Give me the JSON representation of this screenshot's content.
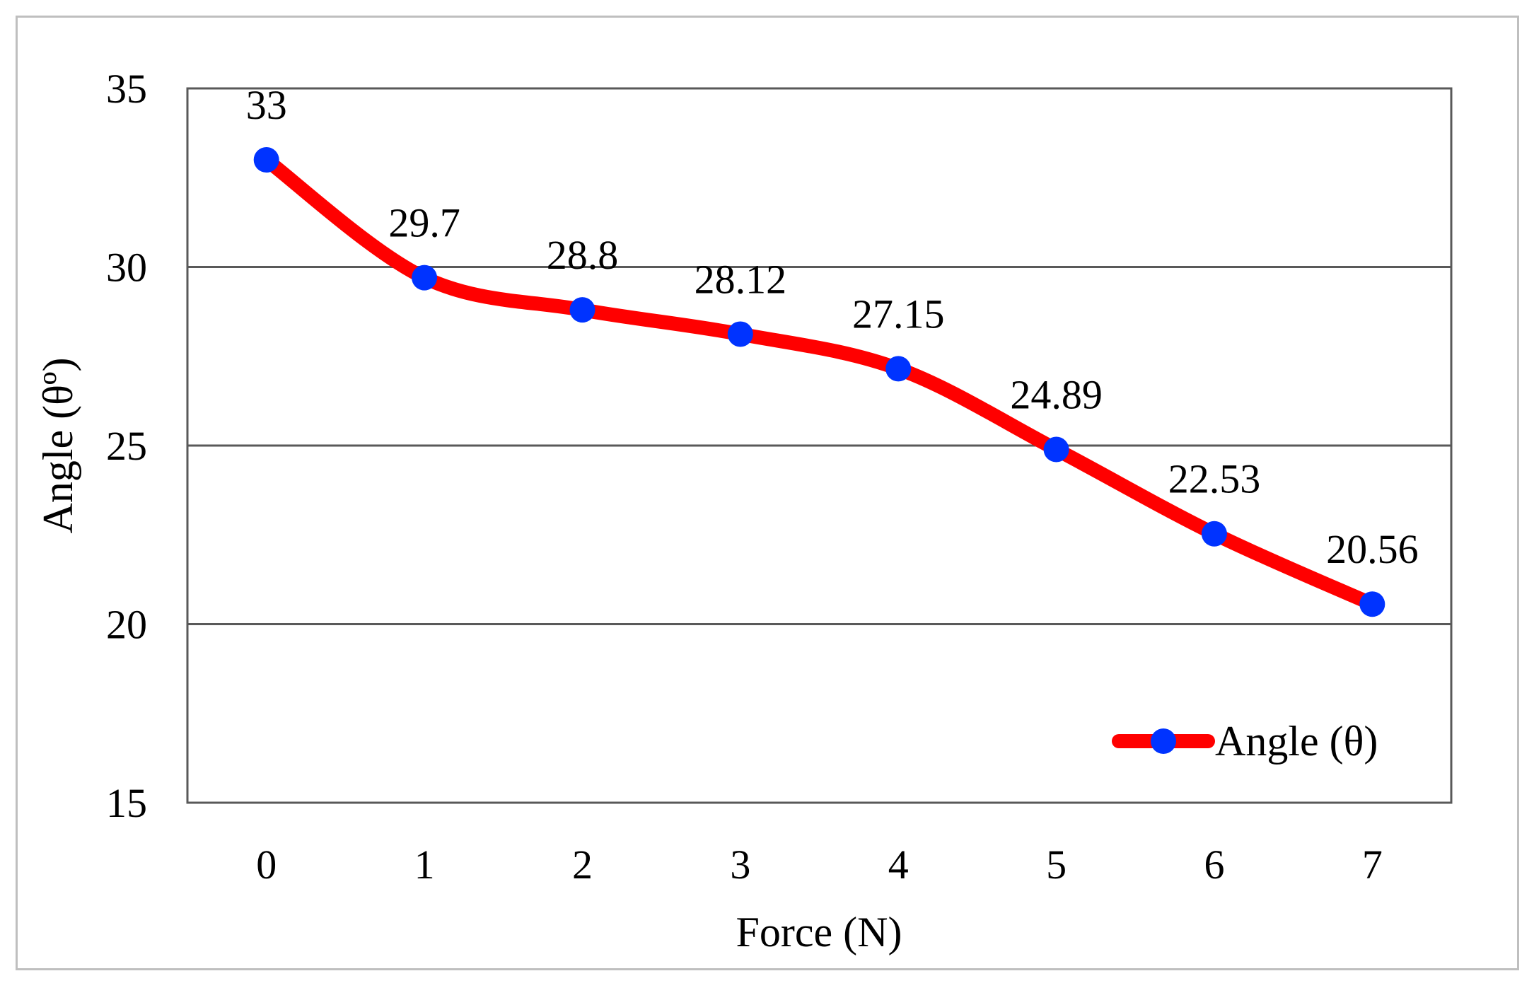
{
  "chart_data": {
    "type": "line",
    "x": [
      0,
      1,
      2,
      3,
      4,
      5,
      6,
      7
    ],
    "categories": [
      "0",
      "1",
      "2",
      "3",
      "4",
      "5",
      "6",
      "7"
    ],
    "series": [
      {
        "name": "Angle (θ)",
        "values": [
          33,
          29.7,
          28.8,
          28.12,
          27.15,
          24.89,
          22.53,
          20.56
        ],
        "data_labels": [
          "33",
          "29.7",
          "28.8",
          "28.12",
          "27.15",
          "24.89",
          "22.53",
          "20.56"
        ],
        "line_color": "#ff0000",
        "marker_color": "#0033ff",
        "smoothed": true
      }
    ],
    "title": "",
    "xlabel": "Force (N)",
    "ylabel": "Angle (θº)",
    "ylim": [
      15,
      35
    ],
    "yticks": [
      "15",
      "20",
      "25",
      "30",
      "35"
    ],
    "grid": "horizontal",
    "legend_position": "bottom-right"
  }
}
